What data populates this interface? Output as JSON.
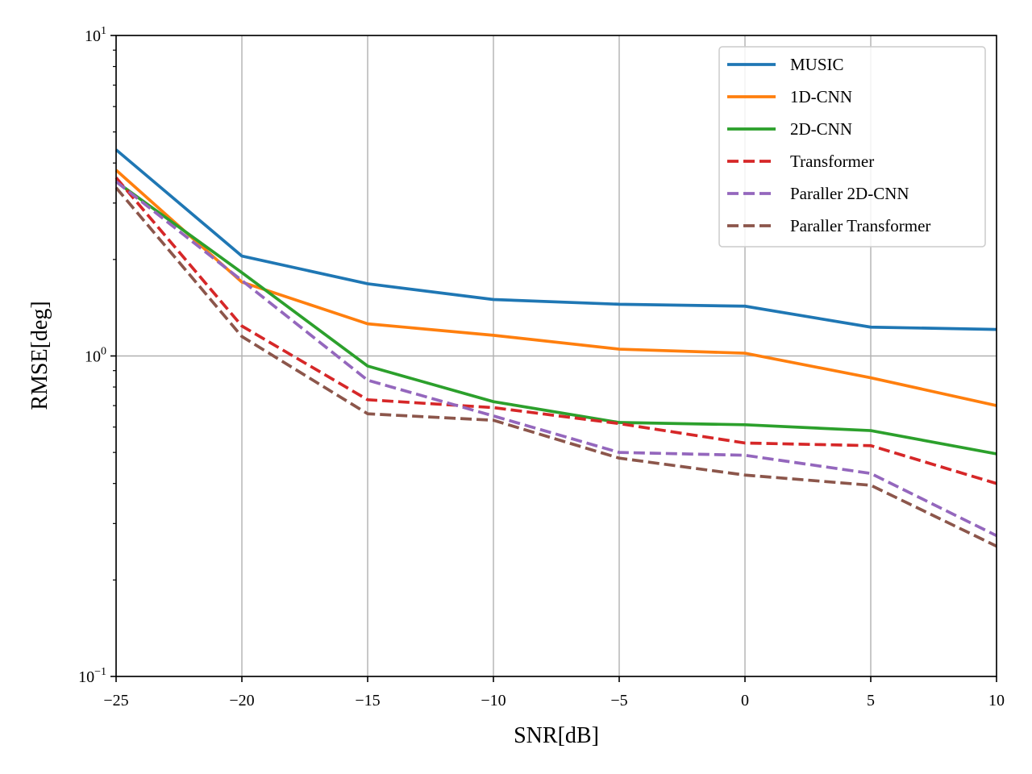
{
  "chart_data": {
    "type": "line",
    "title": "",
    "xlabel": "SNR[dB]",
    "ylabel": "RMSE[deg]",
    "x": [
      -25,
      -20,
      -15,
      -10,
      -5,
      0,
      5,
      10
    ],
    "xlim": [
      -25,
      10
    ],
    "ylim": [
      0.1,
      10
    ],
    "yscale": "log",
    "xticks": [
      -25,
      -20,
      -15,
      -10,
      -5,
      0,
      5,
      10
    ],
    "xtick_labels": [
      "−25",
      "−20",
      "−15",
      "−10",
      "−5",
      "0",
      "5",
      "10"
    ],
    "yticks": [
      {
        "value": 0.1,
        "base": "10",
        "exp": "−1"
      },
      {
        "value": 1,
        "base": "10",
        "exp": "0"
      },
      {
        "value": 10,
        "base": "10",
        "exp": "1"
      }
    ],
    "grid": true,
    "legend_position": "top-right",
    "series": [
      {
        "name": "MUSIC",
        "color": "#1f77b4",
        "style": "solid",
        "values": [
          4.4,
          2.05,
          1.68,
          1.5,
          1.45,
          1.43,
          1.23,
          1.21
        ]
      },
      {
        "name": "1D-CNN",
        "color": "#ff7f0e",
        "style": "solid",
        "values": [
          3.8,
          1.7,
          1.26,
          1.16,
          1.05,
          1.02,
          0.855,
          0.7
        ]
      },
      {
        "name": "2D-CNN",
        "color": "#2ca02c",
        "style": "solid",
        "values": [
          3.5,
          1.82,
          0.93,
          0.72,
          0.62,
          0.61,
          0.585,
          0.495
        ]
      },
      {
        "name": "Transformer",
        "color": "#d62728",
        "style": "dashed",
        "values": [
          3.6,
          1.24,
          0.73,
          0.69,
          0.615,
          0.535,
          0.525,
          0.4
        ]
      },
      {
        "name": "Paraller 2D-CNN",
        "color": "#9467bd",
        "style": "dashed",
        "values": [
          3.5,
          1.72,
          0.84,
          0.65,
          0.5,
          0.49,
          0.43,
          0.275
        ]
      },
      {
        "name": "Paraller Transformer",
        "color": "#8c564b",
        "style": "dashed",
        "values": [
          3.35,
          1.15,
          0.66,
          0.63,
          0.48,
          0.425,
          0.395,
          0.255
        ]
      }
    ]
  }
}
